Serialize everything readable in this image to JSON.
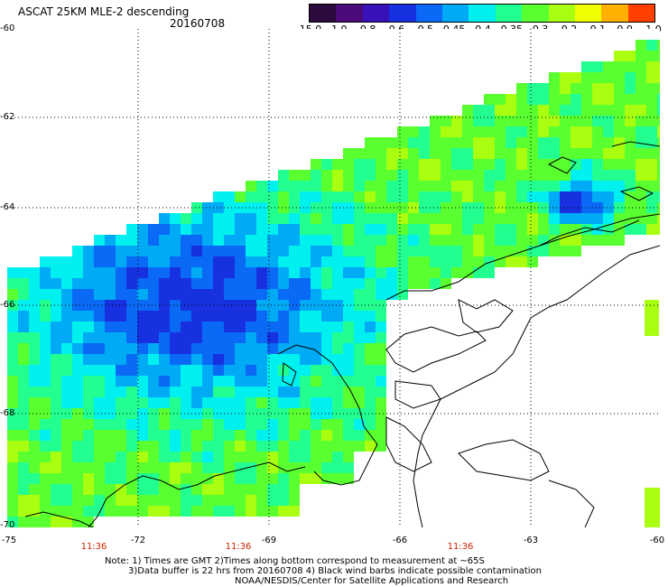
{
  "title": "ASCAT 25KM MLE-2 descending",
  "date": "20160708",
  "colorbar": {
    "labels": [
      "-15.0",
      "-1.0",
      "-0.8",
      "-0.6",
      "-0.5",
      "-0.45",
      "-0.4",
      "-0.35",
      "-0.3",
      "-0.2",
      "-0.1",
      "0.0",
      "1.0"
    ],
    "colors": [
      "#2b0a3d",
      "#4b0a7a",
      "#3a10b8",
      "#1730e0",
      "#0a6af5",
      "#00aaf5",
      "#00f0f0",
      "#22ff90",
      "#5aff30",
      "#aaff10",
      "#f0ff00",
      "#ffb000",
      "#ff4000"
    ]
  },
  "lat_labels": [
    "-60",
    "-62",
    "-64",
    "-66",
    "-68",
    "-70"
  ],
  "lon_labels": [
    "-75",
    "-72",
    "-69",
    "-66",
    "-63",
    "-60"
  ],
  "time_labels": [
    "11:36",
    "11:36",
    "11:36"
  ],
  "notes": [
    "Note: 1) Times are GMT 2)Times along bottom correspond to measurement at ~65S",
    "3)Data buffer is 22 hrs from 20160708 4) Black wind barbs indicate possible contamination",
    "NOAA/NESDIS/Center for Satellite Applications and Research"
  ]
}
